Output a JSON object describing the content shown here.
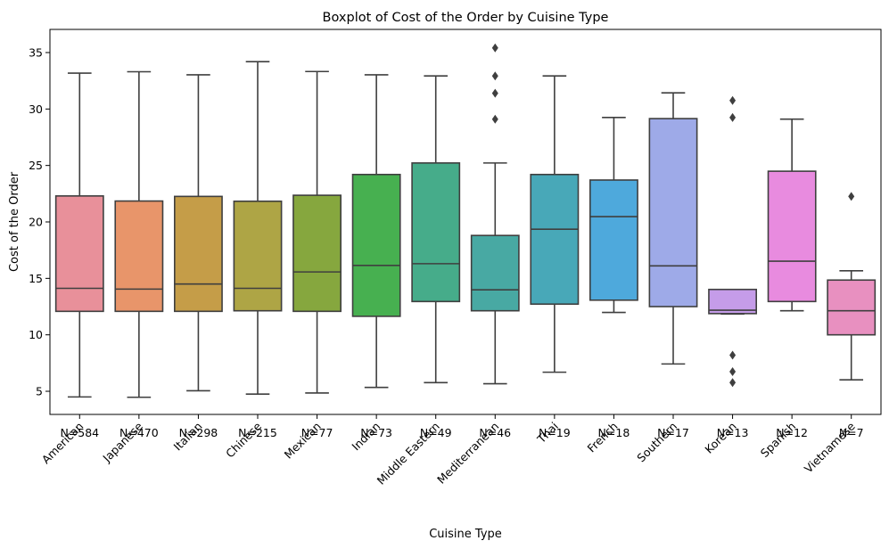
{
  "chart_data": {
    "type": "boxplot",
    "title": "Boxplot of Cost of the Order by Cuisine Type",
    "xlabel": "Cuisine Type",
    "ylabel": "Cost of the Order",
    "ylim": [
      2.95,
      37.05
    ],
    "yticks": [
      5,
      10,
      15,
      20,
      25,
      30,
      35
    ],
    "grid": false,
    "categories": [
      "American",
      "Japanese",
      "Italian",
      "Chinese",
      "Mexican",
      "Indian",
      "Middle Eastern",
      "Mediterranean",
      "Thai",
      "French",
      "Southern",
      "Korean",
      "Spanish",
      "Vietnamese"
    ],
    "counts": [
      "N=584",
      "N=470",
      "N=298",
      "N=215",
      "N=77",
      "N=73",
      "N=49",
      "N=46",
      "N=19",
      "N=18",
      "N=17",
      "N=13",
      "N=12",
      "N=7"
    ],
    "colors": [
      "#e8909a",
      "#e8956a",
      "#c59d48",
      "#aea545",
      "#86a73e",
      "#47b050",
      "#46ac8a",
      "#48a9a3",
      "#48a8b8",
      "#4ea9dc",
      "#9eaae8",
      "#c59ce9",
      "#e88bdf",
      "#e890c0"
    ],
    "boxes": [
      {
        "whisker_low": 4.5,
        "q1": 12.08,
        "median": 14.12,
        "q3": 22.3,
        "whisker_high": 33.18,
        "outliers": []
      },
      {
        "whisker_low": 4.47,
        "q1": 12.08,
        "median": 14.05,
        "q3": 21.85,
        "whisker_high": 33.3,
        "outliers": []
      },
      {
        "whisker_low": 5.05,
        "q1": 12.08,
        "median": 14.5,
        "q3": 22.26,
        "whisker_high": 33.03,
        "outliers": []
      },
      {
        "whisker_low": 4.75,
        "q1": 12.13,
        "median": 14.12,
        "q3": 21.83,
        "whisker_high": 34.19,
        "outliers": []
      },
      {
        "whisker_low": 4.85,
        "q1": 12.08,
        "median": 15.57,
        "q3": 22.36,
        "whisker_high": 33.32,
        "outliers": []
      },
      {
        "whisker_low": 5.34,
        "q1": 11.64,
        "median": 16.15,
        "q3": 24.2,
        "whisker_high": 33.03,
        "outliers": []
      },
      {
        "whisker_low": 5.77,
        "q1": 12.95,
        "median": 16.3,
        "q3": 25.22,
        "whisker_high": 32.93,
        "outliers": []
      },
      {
        "whisker_low": 5.67,
        "q1": 12.13,
        "median": 13.99,
        "q3": 18.8,
        "whisker_high": 25.22,
        "outliers": [
          29.1,
          31.4,
          32.93,
          35.41
        ]
      },
      {
        "whisker_low": 6.69,
        "q1": 12.72,
        "median": 19.35,
        "q3": 24.2,
        "whisker_high": 32.93,
        "outliers": []
      },
      {
        "whisker_low": 11.98,
        "q1": 13.07,
        "median": 20.47,
        "q3": 23.71,
        "whisker_high": 29.25,
        "outliers": []
      },
      {
        "whisker_low": 7.42,
        "q1": 12.5,
        "median": 16.11,
        "q3": 29.15,
        "whisker_high": 31.43,
        "outliers": []
      },
      {
        "whisker_low": 11.84,
        "q1": 11.88,
        "median": 12.18,
        "q3": 14.02,
        "whisker_high": 14.02,
        "outliers": [
          5.77,
          6.74,
          8.2,
          29.25,
          30.75
        ]
      },
      {
        "whisker_low": 12.13,
        "q1": 12.95,
        "median": 16.52,
        "q3": 24.49,
        "whisker_high": 29.1,
        "outliers": []
      },
      {
        "whisker_low": 6.01,
        "q1": 10.0,
        "median": 12.13,
        "q3": 14.85,
        "whisker_high": 15.67,
        "outliers": [
          22.26
        ]
      }
    ]
  }
}
